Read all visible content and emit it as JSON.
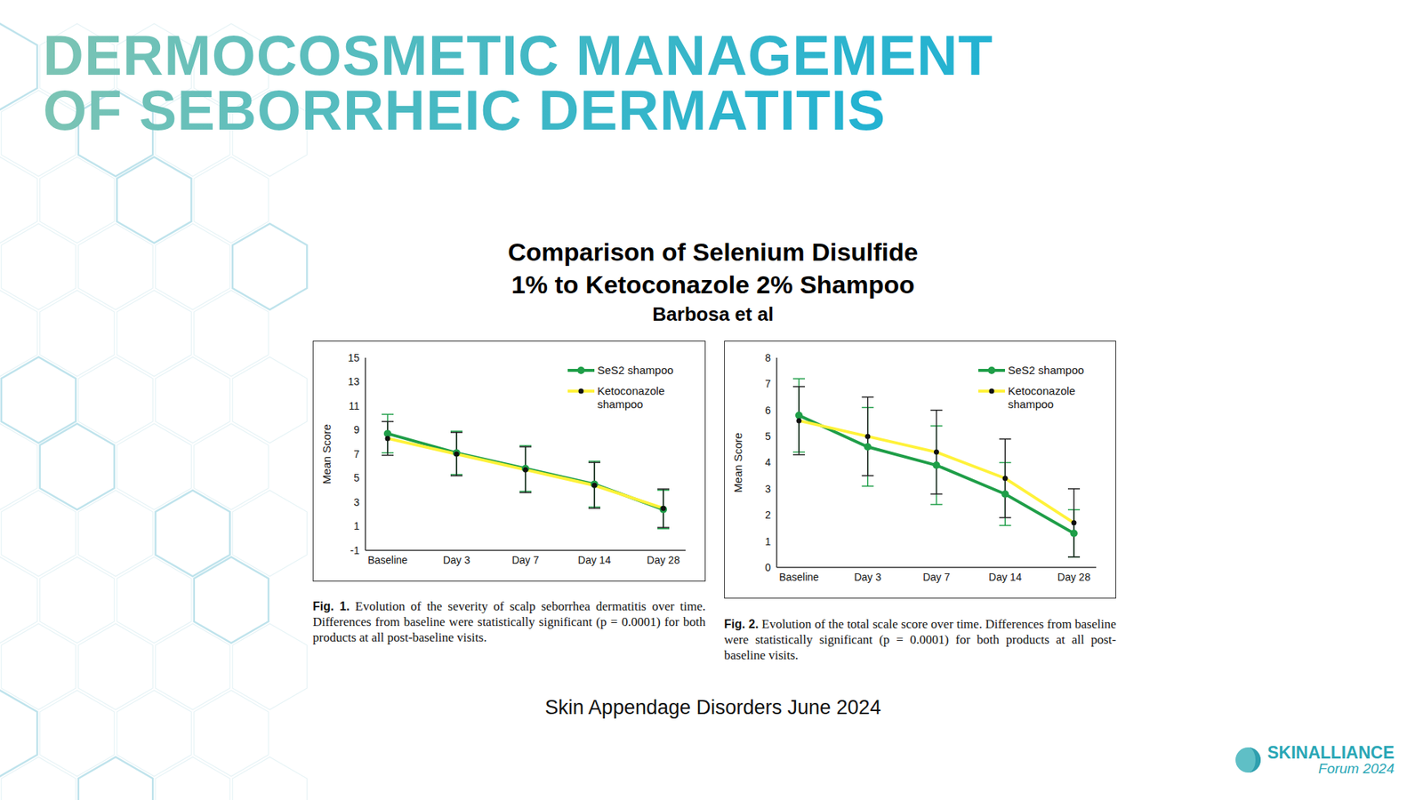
{
  "slide": {
    "title": [
      "DERMOCOSMETIC MANAGEMENT",
      "OF SEBORRHEIC DERMATITIS"
    ],
    "heading": [
      "Comparison of Selenium Disulfide",
      "1% to Ketoconazole 2% Shampoo"
    ],
    "authors": "Barbosa et al",
    "source": "Skin Appendage Disorders June 2024",
    "logo": {
      "name": "SKINALLIANCE",
      "event": "Forum 2024"
    }
  },
  "chart_data": [
    {
      "type": "line",
      "y_label": "Mean Score",
      "categories": [
        "Baseline",
        "Day 3",
        "Day 7",
        "Day 14",
        "Day 28"
      ],
      "series": [
        {
          "name": "SeS2 shampoo",
          "color": "#1f9e48",
          "marker": "circle",
          "values": [
            8.7,
            7.1,
            5.8,
            4.5,
            2.4
          ],
          "errors": [
            1.6,
            1.8,
            1.9,
            1.9,
            1.6
          ]
        },
        {
          "name": "Ketoconazole shampoo",
          "color": "#fff23a",
          "marker": "dot",
          "values": [
            8.3,
            7.0,
            5.7,
            4.4,
            2.5
          ],
          "errors": [
            1.4,
            1.8,
            1.9,
            1.9,
            1.6
          ]
        }
      ],
      "ylim": [
        -1,
        15
      ],
      "yticks": [
        -1,
        1,
        3,
        5,
        7,
        9,
        11,
        13,
        15
      ],
      "grid": false,
      "legend": "upper right",
      "caption": {
        "label": "Fig. 1.",
        "text": "Evolution of the severity of scalp seborrhea dermatitis over time. Differences from baseline were statistically significant (p = 0.0001) for both products at all post-baseline visits."
      }
    },
    {
      "type": "line",
      "y_label": "Mean Score",
      "categories": [
        "Baseline",
        "Day 3",
        "Day 7",
        "Day 14",
        "Day 28"
      ],
      "series": [
        {
          "name": "SeS2 shampoo",
          "color": "#1f9e48",
          "marker": "circle",
          "values": [
            5.8,
            4.6,
            3.9,
            2.8,
            1.3
          ],
          "errors": [
            1.4,
            1.5,
            1.5,
            1.2,
            0.9
          ]
        },
        {
          "name": "Ketoconazole shampoo",
          "color": "#fff23a",
          "marker": "dot",
          "values": [
            5.6,
            5.0,
            4.4,
            3.4,
            1.7
          ],
          "errors": [
            1.3,
            1.5,
            1.6,
            1.5,
            1.3
          ]
        }
      ],
      "ylim": [
        0,
        8
      ],
      "yticks": [
        0,
        1,
        2,
        3,
        4,
        5,
        6,
        7,
        8
      ],
      "grid": false,
      "legend": "upper right",
      "caption": {
        "label": "Fig. 2.",
        "text": "Evolution of the total scale score over time. Differences from baseline were statistically significant (p = 0.0001) for both products at all post-baseline visits."
      }
    }
  ]
}
